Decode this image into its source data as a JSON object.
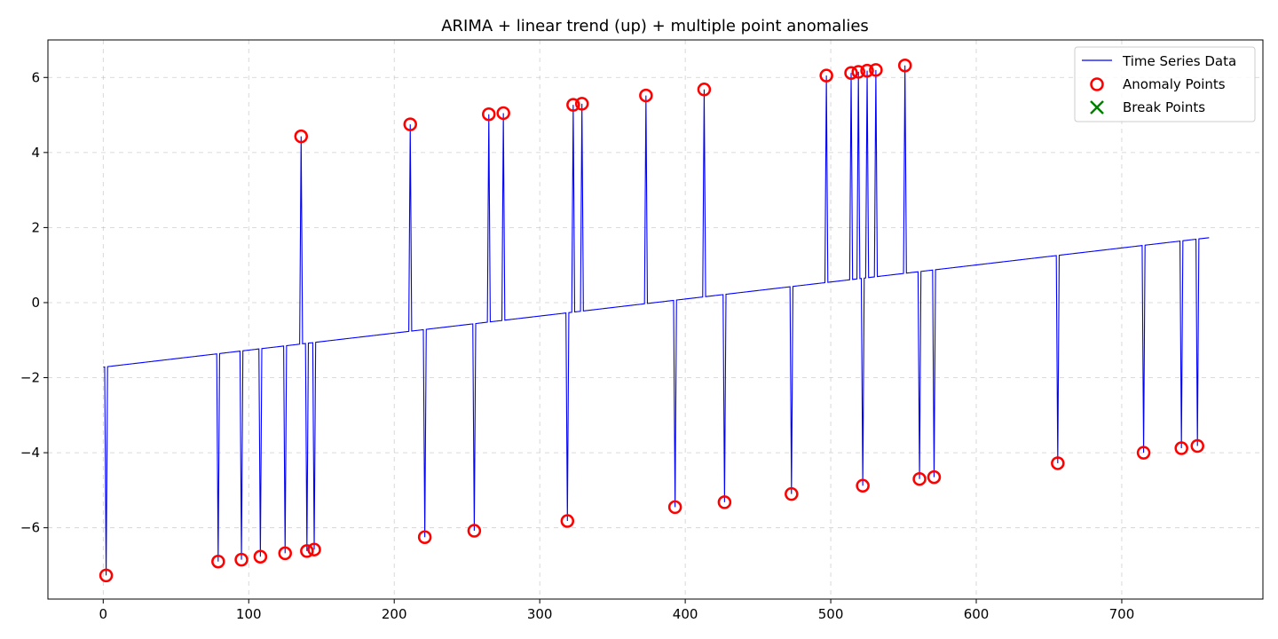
{
  "chart_data": {
    "type": "line",
    "title": "ARIMA + linear trend (up) + multiple point anomalies",
    "xlabel": "",
    "ylabel": "",
    "xlim": [
      -38,
      797
    ],
    "ylim": [
      -7.9,
      7.0
    ],
    "xticks": [
      0,
      100,
      200,
      300,
      400,
      500,
      600,
      700
    ],
    "yticks": [
      -6,
      -4,
      -2,
      0,
      2,
      4,
      6
    ],
    "xtick_labels": [
      "0",
      "100",
      "200",
      "300",
      "400",
      "500",
      "600",
      "700"
    ],
    "ytick_labels": [
      "−6",
      "−4",
      "−2",
      "0",
      "2",
      "4",
      "6"
    ],
    "grid": true,
    "legend_position": "top-right",
    "series": [
      {
        "name": "Time Series Data",
        "kind": "line",
        "color": "#0000ff",
        "baseline": {
          "x_start": 0,
          "x_end": 760,
          "y_start": -1.72,
          "y_end": 1.73
        },
        "n_points": 761
      },
      {
        "name": "Anomaly Points",
        "kind": "marker-circle",
        "color": "#ff0000",
        "points": [
          {
            "x": 2,
            "y": -7.27
          },
          {
            "x": 79,
            "y": -6.9
          },
          {
            "x": 95,
            "y": -6.85
          },
          {
            "x": 108,
            "y": -6.77
          },
          {
            "x": 125,
            "y": -6.68
          },
          {
            "x": 136,
            "y": 4.43
          },
          {
            "x": 140,
            "y": -6.62
          },
          {
            "x": 145,
            "y": -6.58
          },
          {
            "x": 211,
            "y": 4.75
          },
          {
            "x": 221,
            "y": -6.25
          },
          {
            "x": 255,
            "y": -6.08
          },
          {
            "x": 265,
            "y": 5.02
          },
          {
            "x": 275,
            "y": 5.05
          },
          {
            "x": 319,
            "y": -5.82
          },
          {
            "x": 323,
            "y": 5.27
          },
          {
            "x": 329,
            "y": 5.3
          },
          {
            "x": 373,
            "y": 5.52
          },
          {
            "x": 393,
            "y": -5.45
          },
          {
            "x": 413,
            "y": 5.68
          },
          {
            "x": 427,
            "y": -5.32
          },
          {
            "x": 473,
            "y": -5.1
          },
          {
            "x": 497,
            "y": 6.05
          },
          {
            "x": 514,
            "y": 6.12
          },
          {
            "x": 519,
            "y": 6.15
          },
          {
            "x": 522,
            "y": -4.88
          },
          {
            "x": 525,
            "y": 6.18
          },
          {
            "x": 531,
            "y": 6.2
          },
          {
            "x": 551,
            "y": 6.32
          },
          {
            "x": 561,
            "y": -4.7
          },
          {
            "x": 571,
            "y": -4.65
          },
          {
            "x": 656,
            "y": -4.28
          },
          {
            "x": 715,
            "y": -4.0
          },
          {
            "x": 741,
            "y": -3.88
          },
          {
            "x": 752,
            "y": -3.82
          }
        ]
      },
      {
        "name": "Break Points",
        "kind": "marker-x",
        "color": "#008000",
        "points": []
      }
    ]
  }
}
